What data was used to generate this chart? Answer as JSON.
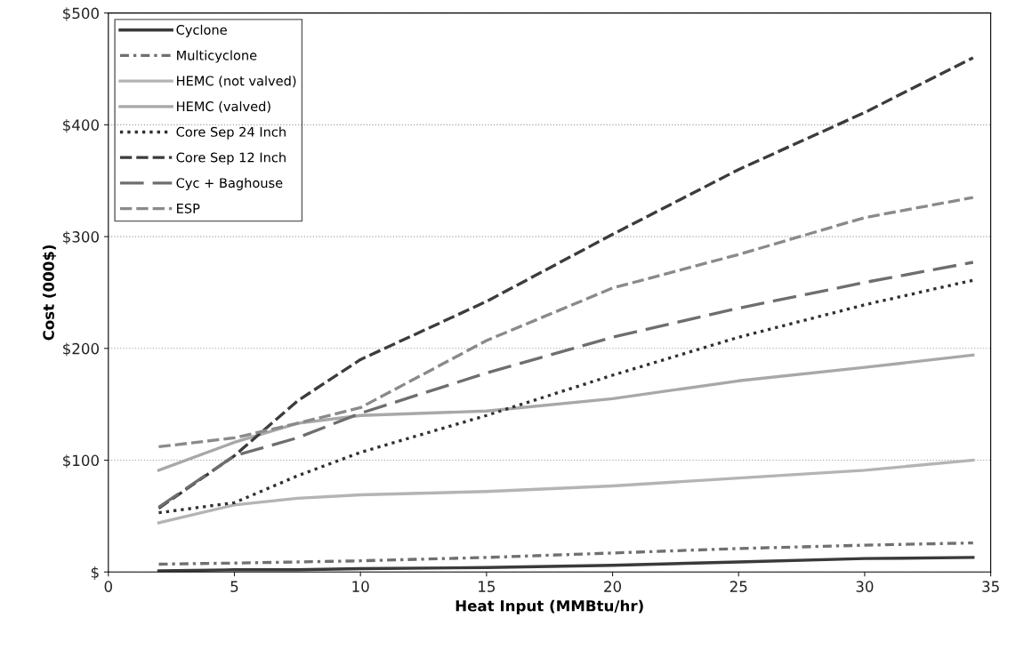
{
  "chart_data": {
    "type": "line",
    "xlabel": "Heat Input (MMBtu/hr)",
    "ylabel": "Cost (000$)",
    "xlim": [
      0,
      35
    ],
    "xticks": [
      0,
      5,
      10,
      15,
      20,
      25,
      30,
      35
    ],
    "ylim": [
      0,
      500
    ],
    "yticks": [
      {
        "value": 0,
        "label": "$"
      },
      {
        "value": 100,
        "label": "$100"
      },
      {
        "value": 200,
        "label": "$200"
      },
      {
        "value": 300,
        "label": "$300"
      },
      {
        "value": 400,
        "label": "$400"
      },
      {
        "value": 500,
        "label": "$500"
      }
    ],
    "grid": "y",
    "legend": "top left",
    "marker": "none",
    "x": [
      2,
      5,
      7.5,
      10,
      15,
      20,
      25,
      30,
      34.3
    ],
    "series": [
      {
        "name": "Cyclone",
        "color": "#3a3a3a",
        "line_style": "solid",
        "values": [
          1,
          2,
          2,
          3,
          4,
          6,
          9,
          12,
          13
        ]
      },
      {
        "name": "Multicyclone",
        "color": "#707070",
        "line_style": "dashdot",
        "values": [
          7,
          8,
          9,
          10,
          13,
          17,
          21,
          24,
          26
        ]
      },
      {
        "name": "HEMC (not valved)",
        "color": "#b4b4b4",
        "line_style": "solid",
        "values": [
          44,
          60,
          66,
          69,
          72,
          77,
          84,
          91,
          100
        ]
      },
      {
        "name": "HEMC (valved)",
        "color": "#a8a8a8",
        "line_style": "solid",
        "values": [
          91,
          116,
          133,
          140,
          144,
          155,
          171,
          183,
          194
        ]
      },
      {
        "name": "Core Sep 24 Inch",
        "color": "#303030",
        "line_style": "dotted",
        "values": [
          53,
          62,
          86,
          107,
          140,
          176,
          210,
          239,
          261
        ]
      },
      {
        "name": "Core Sep 12 Inch",
        "color": "#3c3c3c",
        "line_style": "dashed",
        "values": [
          57,
          104,
          153,
          190,
          242,
          302,
          360,
          411,
          460
        ]
      },
      {
        "name": "Cyc + Baghouse",
        "color": "#6e6e6e",
        "line_style": "longdash",
        "values": [
          58,
          104,
          120,
          142,
          178,
          210,
          236,
          259,
          277
        ]
      },
      {
        "name": "ESP",
        "color": "#8a8a8a",
        "line_style": "dashed",
        "values": [
          112,
          120,
          133,
          147,
          207,
          254,
          284,
          317,
          335
        ]
      }
    ]
  }
}
